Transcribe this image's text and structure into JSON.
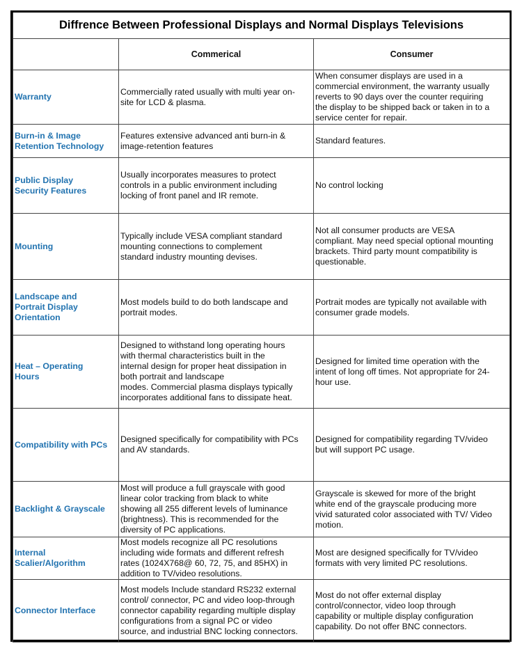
{
  "title": "Diffrence Between Professional Displays and Normal Displays Televisions",
  "columns": [
    "",
    "Commerical",
    "Consumer"
  ],
  "rows": [
    {
      "feature": "Warranty",
      "commercial": "Commercially rated usually with multi year on-\nsite for LCD & plasma.",
      "consumer": "When consumer displays are used in a\ncommercial environment, the warranty usually\nreverts to 90 days over the counter requiring\nthe display to be shipped back or taken in to a\nservice center for repair."
    },
    {
      "feature": "Burn-in & Image\nRetention Technology",
      "commercial": "Features extensive advanced anti burn-in &\nimage-retention features",
      "consumer": "Standard features."
    },
    {
      "feature": "Public Display\nSecurity Features",
      "commercial": "Usually incorporates measures to protect\ncontrols in a public environment including\nlocking of front panel and IR remote.",
      "consumer": "No control locking"
    },
    {
      "feature": "Mounting",
      "commercial": "Typically include VESA compliant standard\nmounting connections to complement\nstandard industry mounting devises.",
      "consumer": "Not all consumer products are VESA\ncompliant.  May need special optional mounting\nbrackets.  Third party mount compatibility is\nquestionable."
    },
    {
      "feature": "Landscape and\nPortrait Display\nOrientation",
      "commercial": "Most models build to do both landscape and\nportrait modes.",
      "consumer": "Portrait modes are typically not available with\nconsumer grade models."
    },
    {
      "feature": "Heat – Operating\nHours",
      "commercial": "Designed to withstand long operating hours\nwith thermal characteristics built in the\ninternal design for proper heat dissipation in\nboth portrait and landscape\nmodes.  Commercial plasma displays typically\nincorporates additional fans to dissipate heat.",
      "consumer": "Designed for limited time operation with the\nintent of long off times.  Not appropriate for 24-\nhour use."
    },
    {
      "feature": "Compatibility with PCs",
      "commercial": "Designed specifically for compatibility with PCs\nand AV standards.",
      "consumer": "Designed for compatibility regarding TV/video\nbut will support PC usage."
    },
    {
      "feature": "Backlight & Grayscale",
      "commercial": "Most will produce a full grayscale with good\nlinear color tracking from black to white\nshowing all 255 different levels of luminance\n(brightness).  This is recommended for the\ndiversity of PC applications.",
      "consumer": "Grayscale is skewed for more of the bright\nwhite end of the grayscale producing more\nvivid saturated color associated with TV/ Video\nmotion."
    },
    {
      "feature": "Internal\nScalier/Algorithm",
      "commercial": "Most models recognize all PC resolutions\nincluding wide formats and different refresh\nrates (1024X768@ 60, 72, 75, and 85HX) in\naddition to TV/video resolutions.",
      "consumer": "Most are designed specifically for TV/video\nformats with very limited PC resolutions."
    },
    {
      "feature": "Connector Interface",
      "commercial": "Most models Include standard RS232 external\ncontrol/ connector, PC and video loop-through\nconnector capability regarding multiple display\nconfigurations from a signal PC or video\nsource, and industrial BNC locking connectors.",
      "consumer": "Most do not offer external display\ncontrol/connector, video loop through\ncapability or multiple display configuration\ncapability.  Do not offer BNC connectors."
    }
  ],
  "colors": {
    "feature_text": "#2273b0",
    "border": "#000000"
  }
}
